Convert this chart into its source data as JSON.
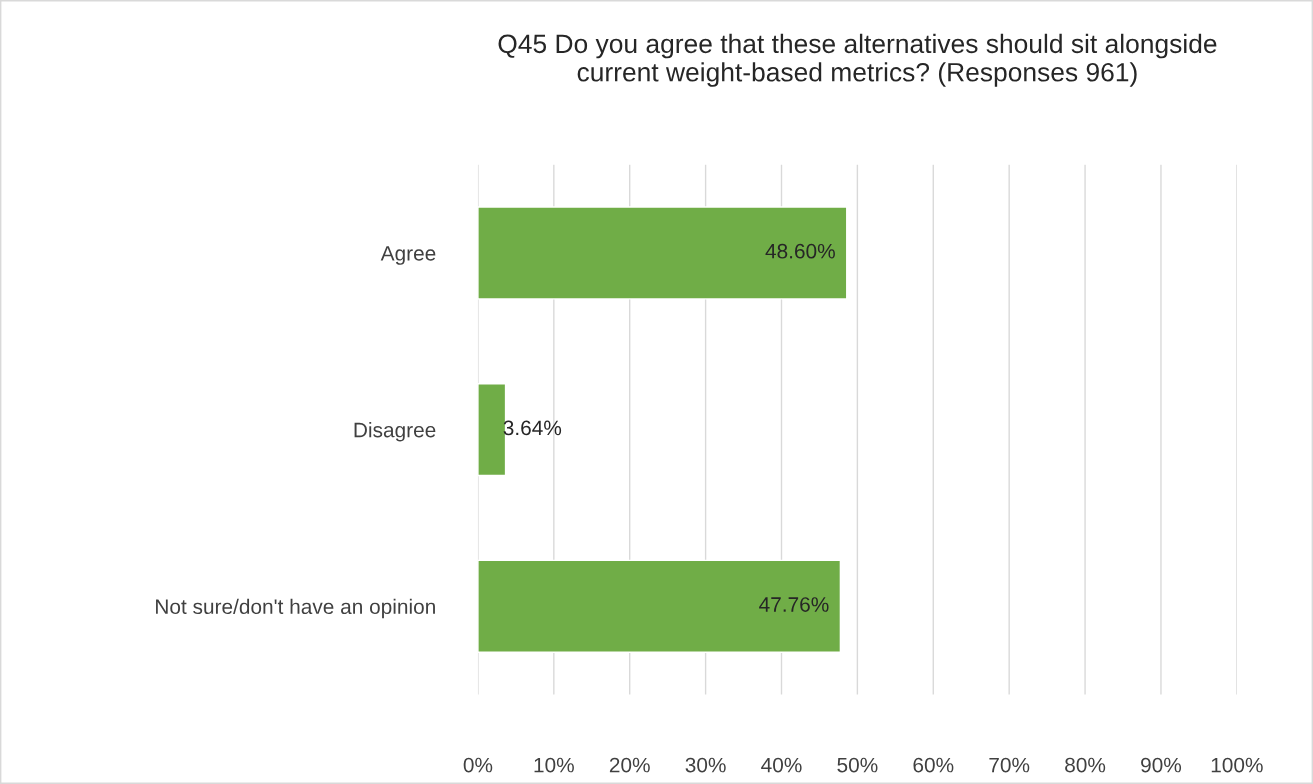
{
  "chart_data": {
    "type": "bar",
    "orientation": "horizontal",
    "title": "Q45 Do you agree that these alternatives should sit alongside\ncurrent weight-based metrics? (Responses 961)",
    "categories": [
      "Agree",
      "Disagree",
      "Not sure/don't have an opinion"
    ],
    "values": [
      48.6,
      3.64,
      47.76
    ],
    "value_labels": [
      "48.60%",
      "3.64%",
      "47.76%"
    ],
    "color": "#70ad47",
    "xlim": [
      0,
      100
    ],
    "xticks": [
      {
        "value": 0,
        "label": "0%"
      },
      {
        "value": 10,
        "label": "10%"
      },
      {
        "value": 20,
        "label": "20%"
      },
      {
        "value": 30,
        "label": "30%"
      },
      {
        "value": 40,
        "label": "40%"
      },
      {
        "value": 50,
        "label": "50%"
      },
      {
        "value": 60,
        "label": "60%"
      },
      {
        "value": 70,
        "label": "70%"
      },
      {
        "value": 80,
        "label": "80%"
      },
      {
        "value": 90,
        "label": "90%"
      },
      {
        "value": 100,
        "label": "100%"
      }
    ],
    "grid": "x",
    "legend": false
  }
}
